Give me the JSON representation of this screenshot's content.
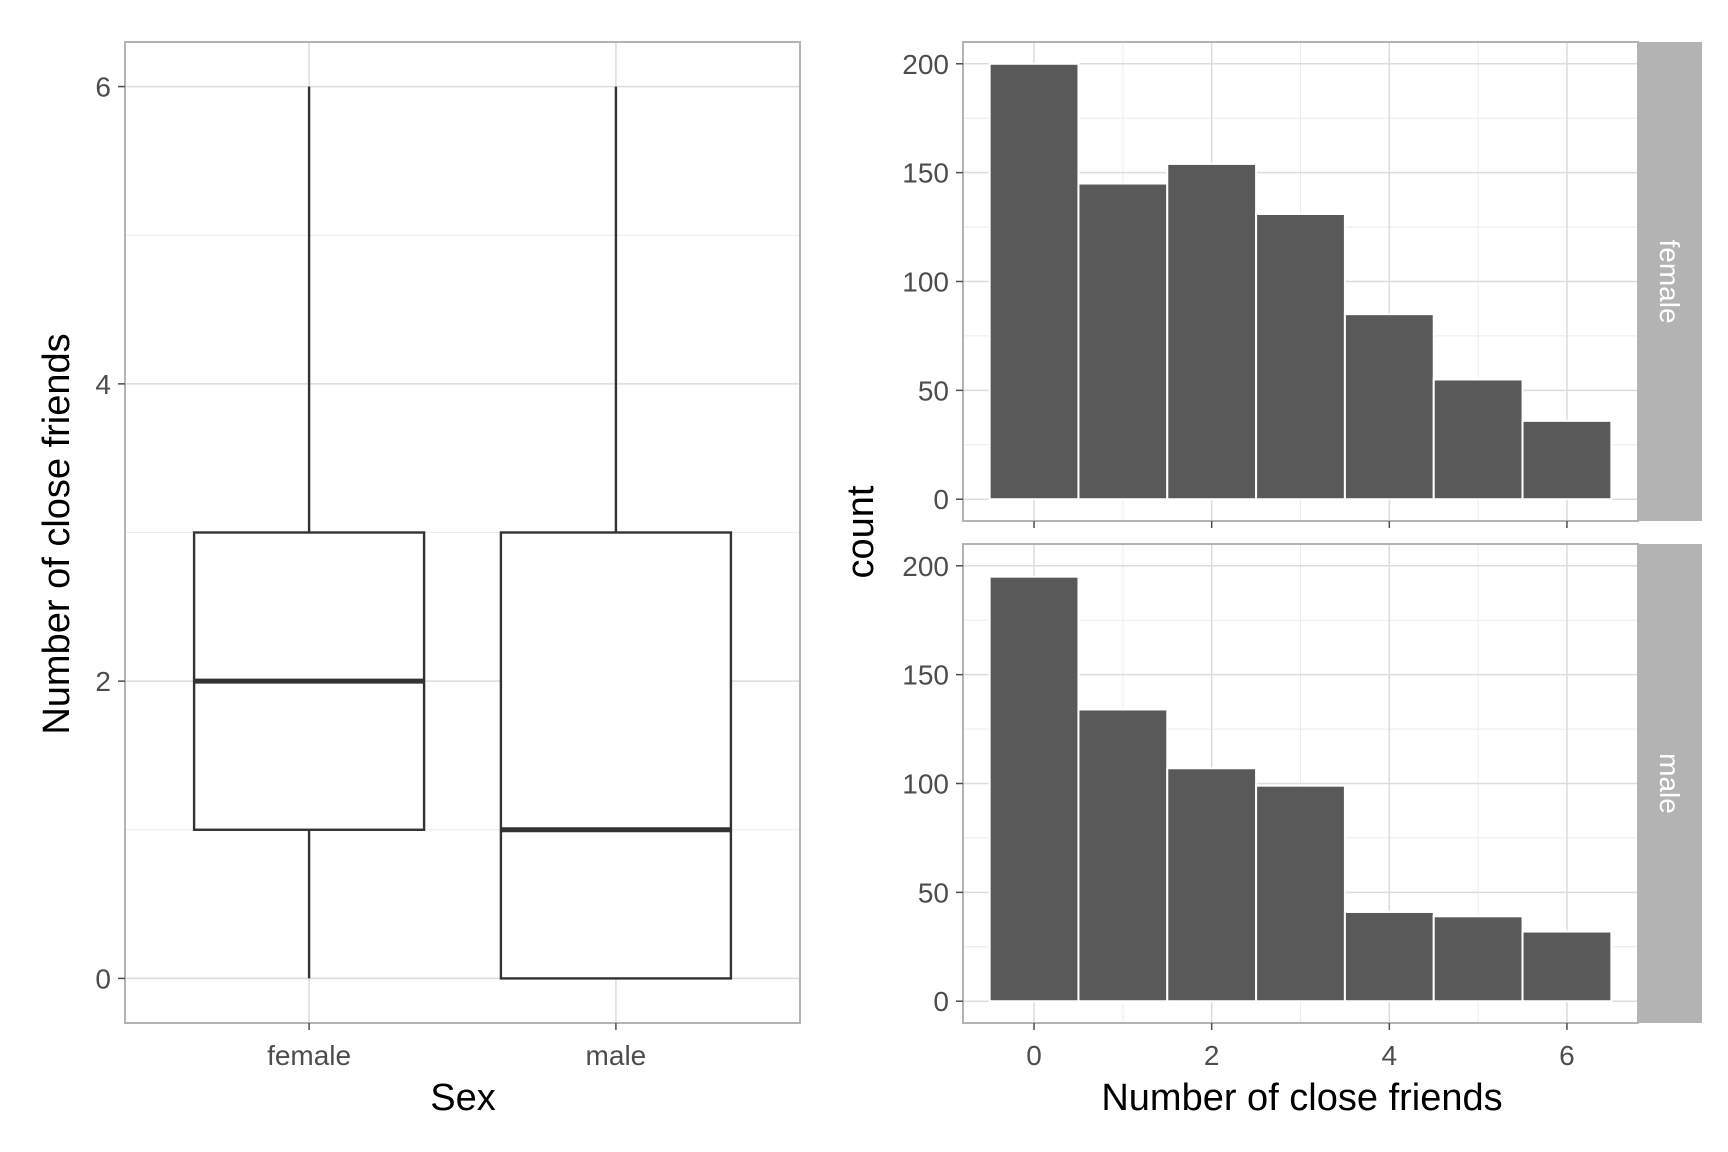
{
  "chart_data": [
    {
      "type": "boxplot",
      "xlabel": "Sex",
      "ylabel": "Number of close friends",
      "categories": [
        "female",
        "male"
      ],
      "ylim": [
        -0.3,
        6.3
      ],
      "yticks": [
        0,
        2,
        4,
        6
      ],
      "grid": true,
      "boxes": [
        {
          "category": "female",
          "min": 0,
          "q1": 1,
          "median": 2,
          "q3": 3,
          "max": 6
        },
        {
          "category": "male",
          "min": 0,
          "q1": 0,
          "median": 1,
          "q3": 3,
          "max": 6
        }
      ]
    },
    {
      "type": "bar",
      "subtype": "histogram",
      "xlabel": "Number of close friends",
      "ylabel": "count",
      "x": [
        0,
        1,
        2,
        3,
        4,
        5,
        6
      ],
      "xlim": [
        -0.8,
        6.8
      ],
      "xticks": [
        0,
        2,
        4,
        6
      ],
      "ylim": [
        -10,
        210
      ],
      "yticks": [
        0,
        50,
        100,
        150,
        200
      ],
      "grid": true,
      "facets": [
        {
          "label": "female",
          "values": [
            200,
            145,
            154,
            131,
            85,
            55,
            36
          ]
        },
        {
          "label": "male",
          "values": [
            195,
            134,
            107,
            99,
            41,
            39,
            32
          ]
        }
      ]
    }
  ]
}
